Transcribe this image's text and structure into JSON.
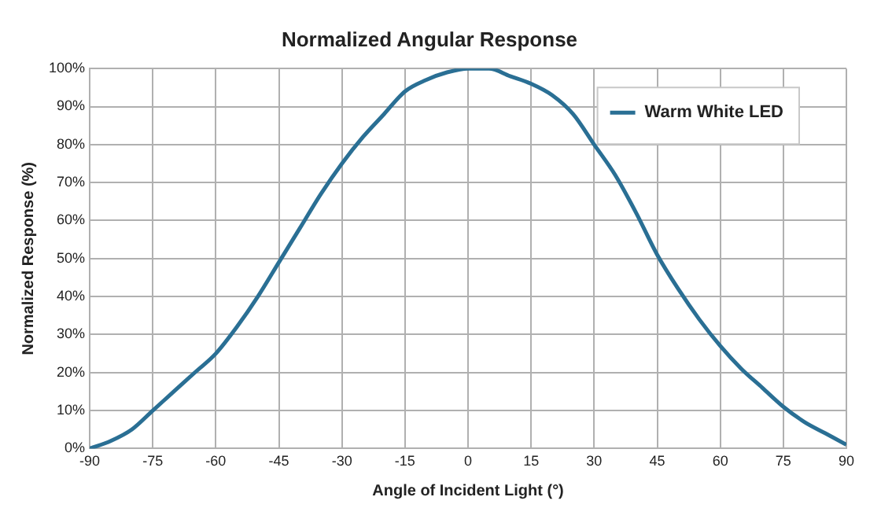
{
  "chart_data": {
    "type": "line",
    "title": "Normalized Angular Response",
    "xlabel": "Angle of Incident Light (°)",
    "ylabel": "Normalized Response (%)",
    "x": [
      -90,
      -85,
      -80,
      -75,
      -70,
      -65,
      -60,
      -55,
      -50,
      -45,
      -40,
      -35,
      -30,
      -25,
      -20,
      -15,
      -10,
      -5,
      0,
      5,
      10,
      15,
      20,
      25,
      30,
      35,
      40,
      45,
      50,
      55,
      60,
      65,
      70,
      75,
      80,
      85,
      90
    ],
    "series": [
      {
        "name": "Warm White LED",
        "color": "#2a6f94",
        "values": [
          0,
          2,
          5,
          10,
          15,
          20,
          25,
          32,
          40,
          49,
          58,
          67,
          75,
          82,
          88,
          94,
          97,
          99,
          100,
          100,
          98,
          96,
          93,
          88,
          80,
          72,
          62,
          51,
          42,
          34,
          27,
          21,
          16,
          11,
          7,
          4,
          1
        ]
      }
    ],
    "xlim": [
      -90,
      90
    ],
    "xticks": [
      -90,
      -75,
      -60,
      -45,
      -30,
      -15,
      0,
      15,
      30,
      45,
      60,
      75,
      90
    ],
    "ylim": [
      0,
      100
    ],
    "yticks": [
      {
        "value": 0,
        "label": "0%"
      },
      {
        "value": 10,
        "label": "10%"
      },
      {
        "value": 20,
        "label": "20%"
      },
      {
        "value": 30,
        "label": "30%"
      },
      {
        "value": 40,
        "label": "40%"
      },
      {
        "value": 50,
        "label": "50%"
      },
      {
        "value": 60,
        "label": "60%"
      },
      {
        "value": 70,
        "label": "70%"
      },
      {
        "value": 80,
        "label": "80%"
      },
      {
        "value": 90,
        "label": "90%"
      },
      {
        "value": 100,
        "label": "100%"
      }
    ],
    "grid": true,
    "legend": "top right",
    "marker": "none",
    "line_style": "solid"
  }
}
